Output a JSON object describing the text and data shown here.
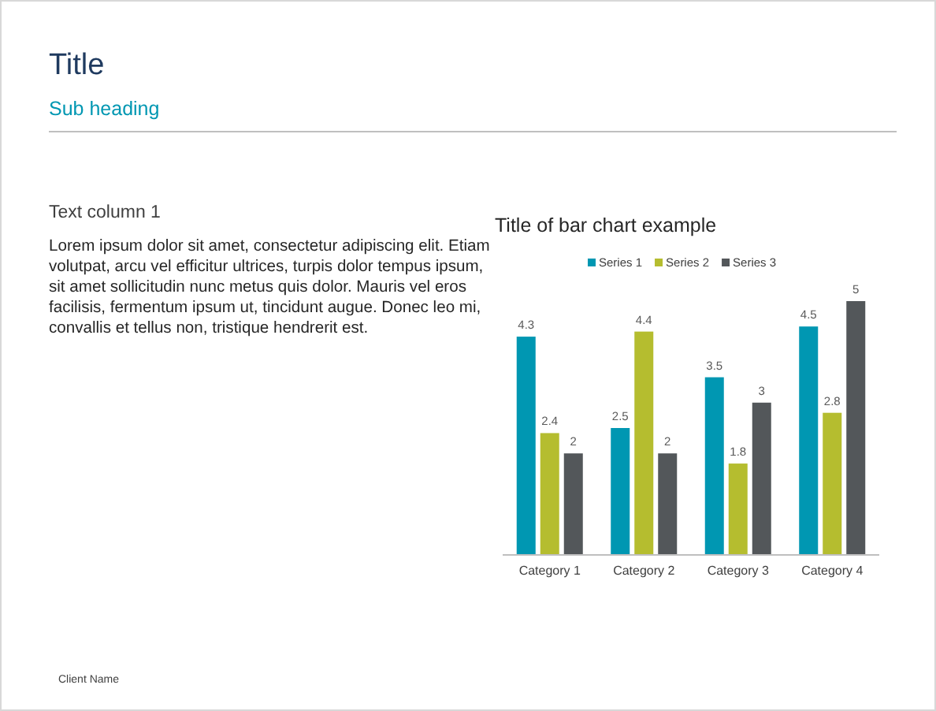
{
  "chart_data": [
    {
      "type": "other",
      "title": "Title",
      "subtitle": "Sub heading",
      "annotations": [
        "Text column 1",
        "Lorem ipsum dolor sit amet, consectetur adipiscing elit. Etiam volutpat, arcu vel efficitur ultrices, turpis dolor tempus ipsum, sit amet sollicitudin nunc metus quis dolor. Mauris vel eros facilisis, fermentum ipsum ut, tincidunt augue. Donec leo mi, convallis et tellus non, tristique hendrerit est.",
        "Client Name"
      ]
    },
    {
      "type": "bar",
      "title": "Title of bar chart example",
      "categories": [
        "Category 1",
        "Category 2",
        "Category 3",
        "Category 4"
      ],
      "series": [
        {
          "name": "Series 1",
          "color": "#0097b2",
          "values": [
            4.3,
            2.5,
            3.5,
            4.5
          ]
        },
        {
          "name": "Series 2",
          "color": "#b5bd2f",
          "values": [
            2.4,
            4.4,
            1.8,
            2.8
          ]
        },
        {
          "name": "Series 3",
          "color": "#53575a",
          "values": [
            2,
            2,
            3,
            5
          ]
        }
      ],
      "relative": false,
      "data_labels": true,
      "legend": "top"
    }
  ]
}
